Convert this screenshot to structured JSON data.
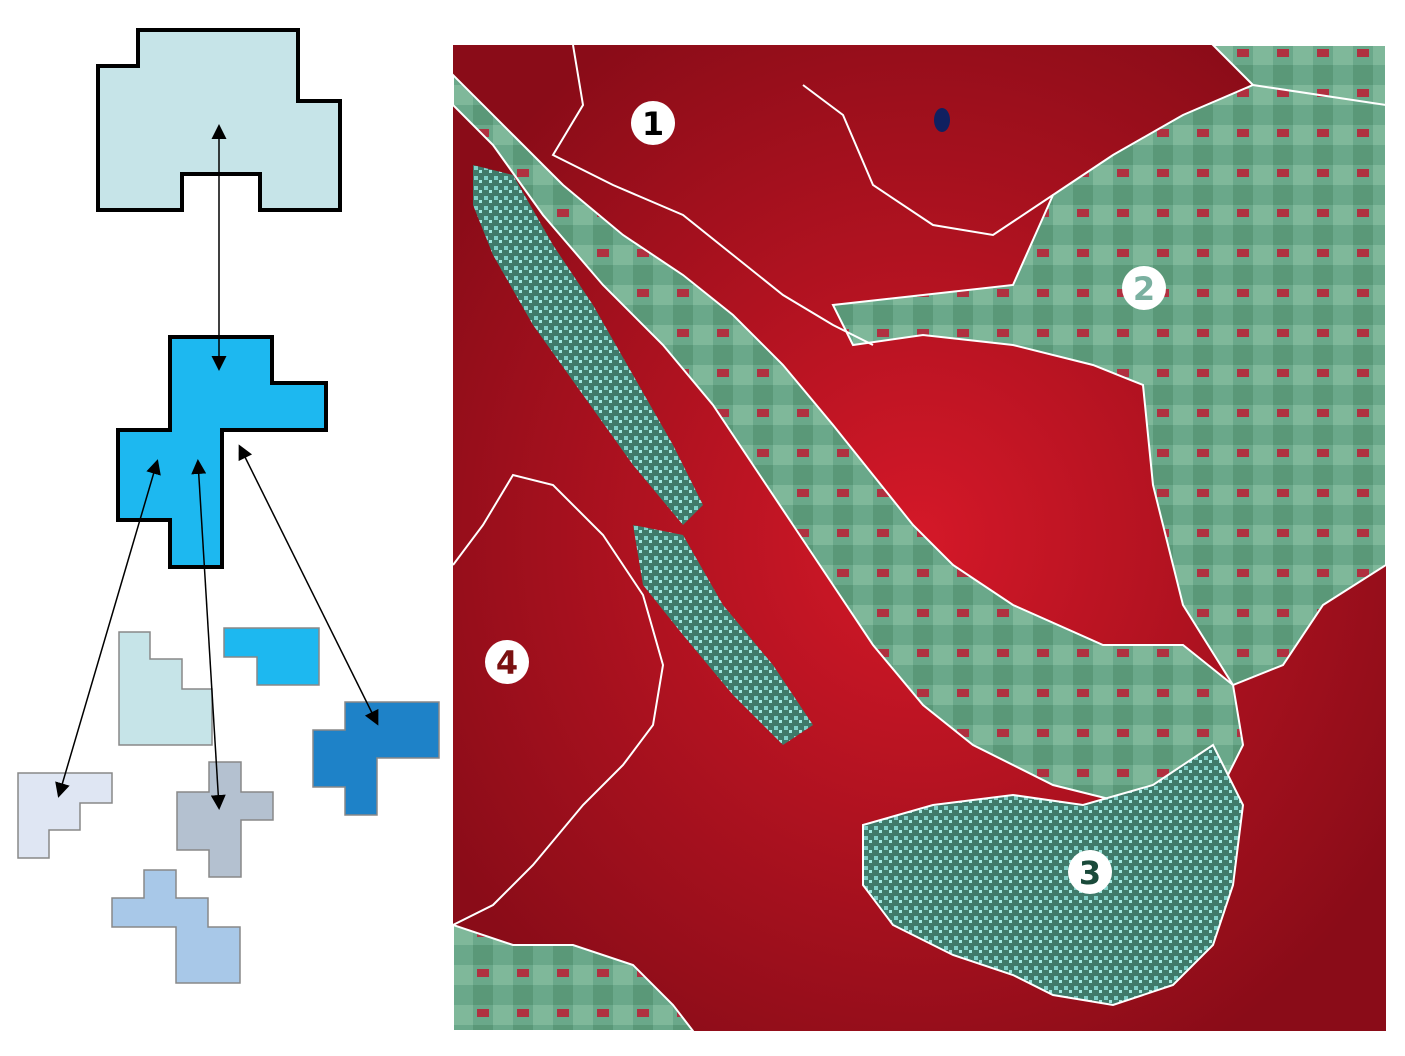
{
  "hierarchy": {
    "colors": {
      "root_fill": "#c6e4e8",
      "mid_fill": "#1db8f0",
      "leaf_lightcyan": "#c6e4e8",
      "leaf_cyan": "#1db8f0",
      "leaf_blue": "#1e82c8",
      "leaf_lavender": "#dfe6f3",
      "leaf_slate": "#b4c1d0",
      "leaf_paleblue": "#a8c8e8",
      "outline": "#000000",
      "arrow": "#000000"
    }
  },
  "satellite": {
    "colors": {
      "vegetation": "#c0101e",
      "dark_vegetation": "#7a0a14",
      "fields": "#6aa88a",
      "urban": "#5fb8b0",
      "boundary": "#ffffff"
    },
    "regions": [
      {
        "label": "1",
        "color": "#000000"
      },
      {
        "label": "2",
        "color": "#7ab0a0"
      },
      {
        "label": "3",
        "color": "#1a4a3a"
      },
      {
        "label": "4",
        "color": "#7a1010"
      }
    ]
  }
}
